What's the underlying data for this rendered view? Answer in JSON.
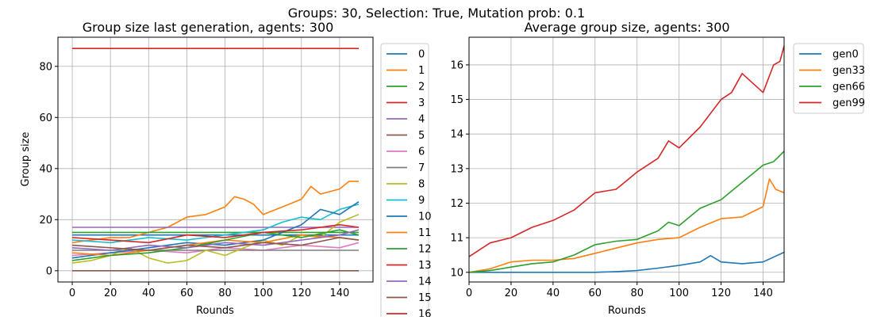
{
  "suptitle": "Groups: 30, Selection: True, Mutation prob: 0.1",
  "chart_data": [
    {
      "type": "line",
      "title": "Group size last generation, agents: 300",
      "xlabel": "Rounds",
      "ylabel": "Group size",
      "xlim": [
        -7.5,
        157.5
      ],
      "ylim": [
        -4.4,
        91.4
      ],
      "xticks": [
        0,
        20,
        40,
        60,
        80,
        100,
        120,
        140
      ],
      "yticks": [
        0,
        20,
        40,
        60,
        80
      ],
      "grid": true,
      "legend": "outside-right",
      "series": [
        {
          "name": "0",
          "color": "#1f77b4",
          "x": [
            0,
            150
          ],
          "y": [
            14,
            14
          ]
        },
        {
          "name": "1",
          "color": "#ff7f0e",
          "x": [
            0,
            10,
            20,
            30,
            40,
            50,
            60,
            70,
            80,
            85,
            90,
            95,
            100,
            110,
            120,
            125,
            130,
            140,
            145,
            150
          ],
          "y": [
            11,
            12,
            13,
            13,
            15,
            17,
            21,
            22,
            25,
            29,
            28,
            26,
            22,
            25,
            28,
            33,
            30,
            32,
            35,
            35
          ]
        },
        {
          "name": "2",
          "color": "#2ca02c",
          "x": [
            0,
            150
          ],
          "y": [
            15,
            15
          ]
        },
        {
          "name": "3",
          "color": "#d62728",
          "x": [
            0,
            150
          ],
          "y": [
            87,
            87
          ]
        },
        {
          "name": "4",
          "color": "#9467bd",
          "x": [
            0,
            150
          ],
          "y": [
            17,
            17
          ]
        },
        {
          "name": "5",
          "color": "#8c564b",
          "x": [
            0,
            150
          ],
          "y": [
            0,
            0
          ]
        },
        {
          "name": "6",
          "color": "#e377c2",
          "x": [
            0,
            20,
            40,
            60,
            80,
            100,
            120,
            140,
            150
          ],
          "y": [
            6,
            7,
            8,
            7,
            9,
            8,
            10,
            9,
            11
          ]
        },
        {
          "name": "7",
          "color": "#7f7f7f",
          "x": [
            0,
            150
          ],
          "y": [
            8,
            8
          ]
        },
        {
          "name": "8",
          "color": "#bcbd22",
          "x": [
            0,
            10,
            20,
            30,
            40,
            50,
            60,
            70,
            80,
            90,
            100,
            110,
            120,
            130,
            140,
            150
          ],
          "y": [
            3,
            4,
            6,
            9,
            5,
            3,
            4,
            8,
            6,
            9,
            12,
            10,
            14,
            13,
            19,
            22
          ]
        },
        {
          "name": "9",
          "color": "#17becf",
          "x": [
            0,
            20,
            40,
            60,
            80,
            100,
            110,
            120,
            130,
            140,
            150
          ],
          "y": [
            12,
            11,
            13,
            12,
            14,
            16,
            19,
            21,
            20,
            24,
            26
          ]
        },
        {
          "name": "10",
          "color": "#1f77b4",
          "x": [
            0,
            20,
            40,
            60,
            80,
            100,
            120,
            130,
            140,
            150
          ],
          "y": [
            5,
            7,
            9,
            11,
            10,
            12,
            18,
            24,
            22,
            27
          ]
        },
        {
          "name": "11",
          "color": "#ff7f0e",
          "x": [
            0,
            20,
            40,
            60,
            80,
            100,
            120,
            140,
            150
          ],
          "y": [
            7,
            6,
            8,
            10,
            12,
            11,
            14,
            13,
            12
          ]
        },
        {
          "name": "12",
          "color": "#2ca02c",
          "x": [
            0,
            20,
            40,
            60,
            80,
            100,
            120,
            140,
            150
          ],
          "y": [
            4,
            6,
            7,
            9,
            12,
            15,
            13,
            16,
            14
          ]
        },
        {
          "name": "13",
          "color": "#d62728",
          "x": [
            0,
            20,
            40,
            60,
            80,
            100,
            120,
            140,
            150
          ],
          "y": [
            13,
            12,
            11,
            14,
            13,
            15,
            16,
            18,
            17
          ]
        },
        {
          "name": "14",
          "color": "#9467bd",
          "x": [
            0,
            20,
            40,
            60,
            80,
            100,
            120,
            140,
            150
          ],
          "y": [
            9,
            8,
            10,
            9,
            11,
            10,
            12,
            14,
            16
          ]
        },
        {
          "name": "15",
          "color": "#8c564b",
          "x": [
            0,
            20,
            40,
            60,
            80,
            100,
            120,
            140,
            150
          ],
          "y": [
            10,
            9,
            8,
            10,
            9,
            11,
            10,
            13,
            12
          ]
        }
      ],
      "legend_extra": [
        "16"
      ]
    },
    {
      "type": "line",
      "title": "Average group size, agents: 300",
      "xlabel": "Rounds",
      "ylabel": "",
      "xlim": [
        0,
        150
      ],
      "ylim": [
        9.72,
        16.8
      ],
      "xticks": [
        0,
        20,
        40,
        60,
        80,
        100,
        120,
        140
      ],
      "yticks": [
        10,
        11,
        12,
        13,
        14,
        15,
        16
      ],
      "grid": true,
      "legend": "outside-top-right",
      "series": [
        {
          "name": "gen0",
          "color": "#1f77b4",
          "x": [
            0,
            20,
            40,
            60,
            70,
            80,
            90,
            100,
            110,
            115,
            120,
            130,
            140,
            150
          ],
          "y": [
            10,
            10,
            10,
            10,
            10.02,
            10.05,
            10.12,
            10.2,
            10.3,
            10.48,
            10.3,
            10.25,
            10.3,
            10.58
          ]
        },
        {
          "name": "gen33",
          "color": "#ff7f0e",
          "x": [
            0,
            10,
            20,
            30,
            40,
            50,
            60,
            70,
            80,
            90,
            100,
            110,
            120,
            130,
            140,
            143,
            146,
            150
          ],
          "y": [
            10.0,
            10.1,
            10.3,
            10.35,
            10.35,
            10.4,
            10.55,
            10.7,
            10.85,
            10.95,
            11.0,
            11.3,
            11.55,
            11.6,
            11.9,
            12.7,
            12.4,
            12.3
          ]
        },
        {
          "name": "gen66",
          "color": "#2ca02c",
          "x": [
            0,
            10,
            20,
            30,
            40,
            50,
            60,
            70,
            80,
            90,
            95,
            100,
            110,
            120,
            130,
            140,
            145,
            150
          ],
          "y": [
            10.0,
            10.05,
            10.15,
            10.25,
            10.3,
            10.5,
            10.8,
            10.9,
            10.95,
            11.2,
            11.45,
            11.35,
            11.85,
            12.1,
            12.6,
            13.1,
            13.2,
            13.5
          ]
        },
        {
          "name": "gen99",
          "color": "#d62728",
          "x": [
            0,
            10,
            20,
            30,
            40,
            50,
            60,
            70,
            80,
            90,
            95,
            100,
            110,
            120,
            125,
            130,
            140,
            145,
            148,
            150
          ],
          "y": [
            10.45,
            10.85,
            11.0,
            11.3,
            11.5,
            11.8,
            12.3,
            12.4,
            12.9,
            13.3,
            13.8,
            13.6,
            14.2,
            15.0,
            15.2,
            15.75,
            15.2,
            16.0,
            16.1,
            16.55
          ]
        }
      ]
    }
  ]
}
